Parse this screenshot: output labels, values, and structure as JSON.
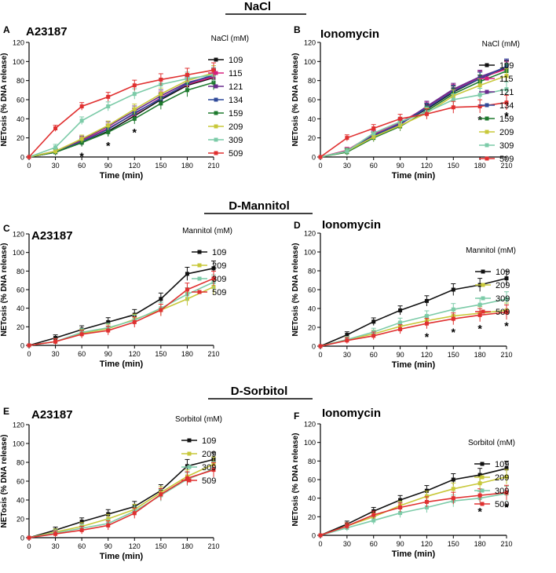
{
  "sections": [
    {
      "title": "NaCl"
    },
    {
      "title": "D-Mannitol"
    },
    {
      "title": "D-Sorbitol"
    }
  ],
  "colors": {
    "109": "#111111",
    "115": "#d6207f",
    "121": "#6a2c8e",
    "134": "#2f4a9a",
    "159": "#1e7a2e",
    "209": "#c8c83a",
    "309": "#7ccba8",
    "509": "#e03030"
  },
  "chart_data": [
    {
      "type": "line",
      "panel_letter": "A",
      "title": "A23187",
      "legend_title": "NaCl (mM)",
      "xlabel": "Time (min)",
      "ylabel": "NETosis (% DNA release)",
      "x": [
        0,
        30,
        60,
        90,
        120,
        150,
        180,
        210
      ],
      "xlim": [
        0,
        210
      ],
      "ylim": [
        0,
        120
      ],
      "yticks": [
        0,
        20,
        40,
        60,
        80,
        100,
        120
      ],
      "series": [
        {
          "name": "109",
          "values": [
            0,
            5,
            15,
            27,
            43,
            60,
            75,
            83
          ]
        },
        {
          "name": "115",
          "values": [
            0,
            5,
            17,
            30,
            45,
            62,
            76,
            84
          ]
        },
        {
          "name": "121",
          "values": [
            0,
            6,
            18,
            32,
            48,
            64,
            78,
            85
          ]
        },
        {
          "name": "134",
          "values": [
            0,
            5,
            16,
            29,
            46,
            61,
            77,
            86
          ]
        },
        {
          "name": "159",
          "values": [
            0,
            5,
            15,
            26,
            40,
            56,
            70,
            78
          ]
        },
        {
          "name": "209",
          "values": [
            0,
            6,
            19,
            33,
            50,
            66,
            80,
            88
          ]
        },
        {
          "name": "309",
          "values": [
            0,
            10,
            38,
            53,
            66,
            76,
            82,
            86
          ]
        },
        {
          "name": "509",
          "values": [
            0,
            30,
            53,
            63,
            75,
            81,
            86,
            91
          ]
        }
      ],
      "stars": [
        {
          "x": 60,
          "label": "*"
        },
        {
          "x": 90,
          "label": "*"
        },
        {
          "x": 120,
          "label": "*"
        }
      ]
    },
    {
      "type": "line",
      "panel_letter": "B",
      "title": "Ionomycin",
      "legend_title": "NaCl (mM)",
      "xlabel": "Time (min)",
      "ylabel": "NETosis (% DNA release)",
      "x": [
        0,
        30,
        60,
        90,
        120,
        150,
        180,
        210
      ],
      "xlim": [
        0,
        210
      ],
      "ylim": [
        0,
        120
      ],
      "yticks": [
        0,
        20,
        40,
        60,
        80,
        100,
        120
      ],
      "series": [
        {
          "name": "109",
          "values": [
            0,
            6,
            22,
            35,
            50,
            68,
            82,
            93
          ]
        },
        {
          "name": "115",
          "values": [
            0,
            7,
            24,
            36,
            52,
            70,
            83,
            92
          ]
        },
        {
          "name": "121",
          "values": [
            0,
            6,
            23,
            34,
            53,
            71,
            84,
            94
          ]
        },
        {
          "name": "134",
          "values": [
            0,
            6,
            22,
            35,
            51,
            69,
            82,
            95
          ]
        },
        {
          "name": "159",
          "values": [
            0,
            5,
            20,
            32,
            48,
            66,
            79,
            90
          ]
        },
        {
          "name": "209",
          "values": [
            0,
            6,
            21,
            33,
            46,
            64,
            75,
            85
          ]
        },
        {
          "name": "309",
          "values": [
            0,
            6,
            25,
            37,
            47,
            60,
            65,
            71
          ]
        },
        {
          "name": "509",
          "values": [
            0,
            20,
            30,
            40,
            45,
            52,
            53,
            57
          ]
        }
      ],
      "stars": [
        {
          "x": 180,
          "label": "*"
        },
        {
          "x": 210,
          "label": "*"
        }
      ]
    },
    {
      "type": "line",
      "panel_letter": "C",
      "title": "A23187",
      "legend_title": "Mannitol (mM)",
      "xlabel": "Time (min)",
      "ylabel": "NETosis (% DNA release)",
      "x": [
        0,
        30,
        60,
        90,
        120,
        150,
        180,
        210
      ],
      "xlim": [
        0,
        210
      ],
      "ylim": [
        0,
        120
      ],
      "yticks": [
        0,
        20,
        40,
        60,
        80,
        100,
        120
      ],
      "series": [
        {
          "name": "109",
          "values": [
            0,
            8,
            17,
            25,
            33,
            50,
            77,
            83
          ]
        },
        {
          "name": "209",
          "values": [
            0,
            4,
            13,
            18,
            28,
            38,
            50,
            63
          ]
        },
        {
          "name": "309",
          "values": [
            0,
            4,
            14,
            19,
            27,
            40,
            55,
            68
          ]
        },
        {
          "name": "509",
          "values": [
            0,
            4,
            12,
            16,
            25,
            38,
            60,
            72
          ]
        }
      ],
      "stars": []
    },
    {
      "type": "line",
      "panel_letter": "D",
      "title": "Ionomycin",
      "legend_title": "Mannitol (mM)",
      "xlabel": "Time (min)",
      "ylabel": "NETosis (% DNA release)",
      "x": [
        0,
        30,
        60,
        90,
        120,
        150,
        180,
        210
      ],
      "xlim": [
        0,
        210
      ],
      "ylim": [
        0,
        120
      ],
      "yticks": [
        0,
        20,
        40,
        60,
        80,
        100,
        120
      ],
      "series": [
        {
          "name": "109",
          "values": [
            0,
            12,
            26,
            38,
            48,
            60,
            65,
            72
          ]
        },
        {
          "name": "209",
          "values": [
            0,
            7,
            13,
            21,
            27,
            32,
            35,
            38
          ]
        },
        {
          "name": "309",
          "values": [
            0,
            7,
            15,
            25,
            32,
            39,
            44,
            50
          ]
        },
        {
          "name": "509",
          "values": [
            0,
            6,
            11,
            18,
            24,
            29,
            33,
            36
          ]
        }
      ],
      "stars": [
        {
          "x": 120,
          "label": "*"
        },
        {
          "x": 150,
          "label": "*"
        },
        {
          "x": 180,
          "label": "*"
        },
        {
          "x": 210,
          "label": "*"
        }
      ]
    },
    {
      "type": "line",
      "panel_letter": "E",
      "title": "A23187",
      "legend_title": "Sorbitol (mM)",
      "xlabel": "Time (min)",
      "ylabel": "NETosis (% DNA release)",
      "x": [
        0,
        30,
        60,
        90,
        120,
        150,
        180,
        210
      ],
      "xlim": [
        0,
        210
      ],
      "ylim": [
        0,
        120
      ],
      "yticks": [
        0,
        20,
        40,
        60,
        80,
        100,
        120
      ],
      "series": [
        {
          "name": "109",
          "values": [
            0,
            8,
            17,
            25,
            33,
            50,
            76,
            83
          ]
        },
        {
          "name": "209",
          "values": [
            0,
            6,
            12,
            20,
            30,
            48,
            65,
            78
          ]
        },
        {
          "name": "309",
          "values": [
            0,
            5,
            10,
            15,
            28,
            45,
            62,
            73
          ]
        },
        {
          "name": "509",
          "values": [
            0,
            4,
            8,
            13,
            26,
            46,
            63,
            72
          ]
        }
      ],
      "stars": []
    },
    {
      "type": "line",
      "panel_letter": "F",
      "title": "Ionomycin",
      "legend_title": "Sorbitol (mM)",
      "xlabel": "Time (min)",
      "ylabel": "NETosis (% DNA release)",
      "x": [
        0,
        30,
        60,
        90,
        120,
        150,
        180,
        210
      ],
      "xlim": [
        0,
        210
      ],
      "ylim": [
        0,
        120
      ],
      "yticks": [
        0,
        20,
        40,
        60,
        80,
        100,
        120
      ],
      "series": [
        {
          "name": "109",
          "values": [
            0,
            12,
            26,
            38,
            48,
            60,
            65,
            72
          ]
        },
        {
          "name": "209",
          "values": [
            0,
            10,
            20,
            32,
            42,
            50,
            56,
            63
          ]
        },
        {
          "name": "309",
          "values": [
            0,
            8,
            16,
            24,
            30,
            37,
            40,
            45
          ]
        },
        {
          "name": "509",
          "values": [
            0,
            10,
            22,
            30,
            36,
            40,
            43,
            46
          ]
        }
      ],
      "stars": [
        {
          "x": 180,
          "label": "*"
        },
        {
          "x": 210,
          "label": "*"
        }
      ]
    }
  ]
}
